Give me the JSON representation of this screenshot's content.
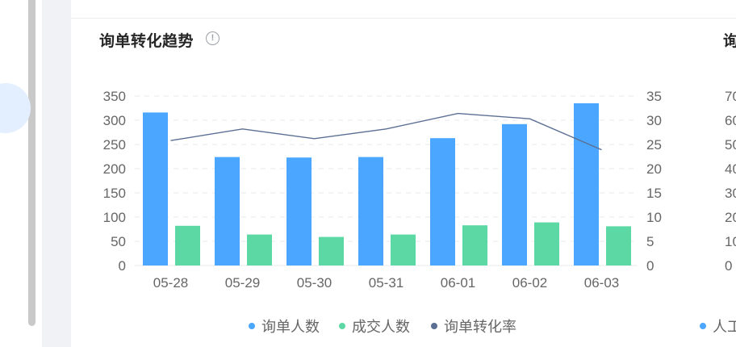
{
  "panel": {
    "title": "询单转化趋势",
    "info_icon": "info-circle-icon",
    "next_panel_title_fragment": "询",
    "next_panel_legend_fragment": "人工"
  },
  "colors": {
    "inquiry_people": "#4aa6ff",
    "deal_people": "#5cd8a5",
    "conversion_rate": "#5b6f94",
    "axis_text": "#666666",
    "grid": "#e6e8eb"
  },
  "chart_data": {
    "type": "bar",
    "categories": [
      "05-28",
      "05-29",
      "05-30",
      "05-31",
      "06-01",
      "06-02",
      "06-03"
    ],
    "series": [
      {
        "name": "询单人数",
        "type": "bar",
        "axis": "left",
        "color": "#4aa6ff",
        "values": [
          316,
          224,
          223,
          224,
          263,
          292,
          335
        ]
      },
      {
        "name": "成交人数",
        "type": "bar",
        "axis": "left",
        "color": "#5cd8a5",
        "values": [
          82,
          64,
          59,
          64,
          83,
          89,
          81
        ]
      },
      {
        "name": "询单转化率",
        "type": "line",
        "axis": "right",
        "color": "#5b6f94",
        "values": [
          25.8,
          28.2,
          26.2,
          28.2,
          31.4,
          30.3,
          23.9
        ]
      }
    ],
    "y_left": {
      "min": 0,
      "max": 350,
      "ticks": [
        0,
        50,
        100,
        150,
        200,
        250,
        300,
        350
      ]
    },
    "y_right": {
      "min": 0,
      "max": 35,
      "ticks": [
        0,
        5,
        10,
        15,
        20,
        25,
        30,
        35
      ]
    },
    "next_chart_partial_ticks": [
      "0",
      "10",
      "20",
      "30",
      "40",
      "50",
      "60",
      "70"
    ],
    "grid": "dashed-horizontal",
    "legend": "bottom-center"
  }
}
